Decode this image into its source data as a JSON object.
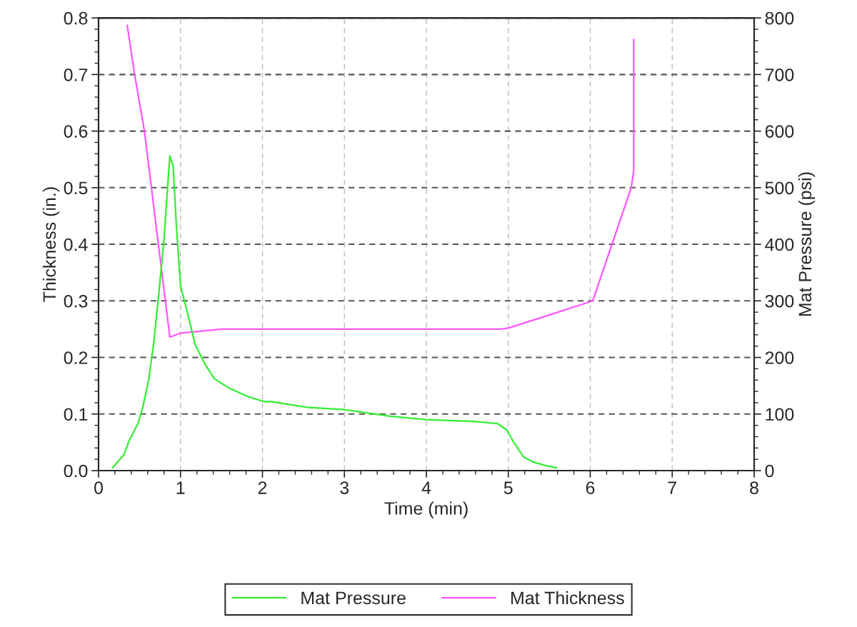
{
  "chart_data": {
    "type": "line",
    "xlabel": "Time (min)",
    "ylabel": "Thickness (in.)",
    "y2label": "Mat Pressure (psi)",
    "xlim": [
      0,
      8
    ],
    "xticks": [
      0,
      1,
      2,
      3,
      4,
      5,
      6,
      7,
      8
    ],
    "ylim": [
      0,
      0.8
    ],
    "yticks": [
      "0.0",
      0.1,
      0.2,
      0.3,
      0.4,
      0.5,
      0.6,
      0.7,
      0.8
    ],
    "y2lim": [
      0,
      800
    ],
    "y2ticks": [
      0,
      100,
      200,
      300,
      400,
      500,
      600,
      700,
      800
    ],
    "grid": true,
    "legend": "bottom",
    "line_style": "solid",
    "marker": "none",
    "series": [
      {
        "name": "Mat Pressure",
        "color": "#33ee33",
        "axis": "y2",
        "x": [
          0.17,
          0.31,
          0.37,
          0.48,
          0.54,
          0.61,
          0.67,
          0.73,
          0.8,
          0.85,
          0.87,
          0.91,
          0.95,
          1.0,
          1.09,
          1.18,
          1.3,
          1.41,
          1.59,
          1.82,
          2.02,
          2.11,
          2.54,
          2.98,
          3.56,
          4.0,
          4.58,
          4.87,
          4.98,
          5.07,
          5.19,
          5.31,
          5.45,
          5.59
        ],
        "values": [
          5,
          28,
          52,
          83,
          112,
          159,
          222,
          305,
          411,
          516,
          556,
          538,
          432,
          327,
          276,
          222,
          188,
          163,
          146,
          131,
          122,
          122,
          112,
          108,
          96,
          90,
          87,
          83,
          72,
          49,
          24,
          15,
          9,
          5
        ]
      },
      {
        "name": "Mat Thickness",
        "color": "#ff55ff",
        "axis": "y",
        "x": [
          0.35,
          0.44,
          0.56,
          0.87,
          1.0,
          1.5,
          4.9,
          5.0,
          5.5,
          6.03,
          6.5,
          6.53,
          6.53
        ],
        "values": [
          0.787,
          0.7,
          0.6,
          0.236,
          0.243,
          0.25,
          0.25,
          0.252,
          0.275,
          0.3,
          0.5,
          0.53,
          0.762
        ]
      }
    ]
  }
}
